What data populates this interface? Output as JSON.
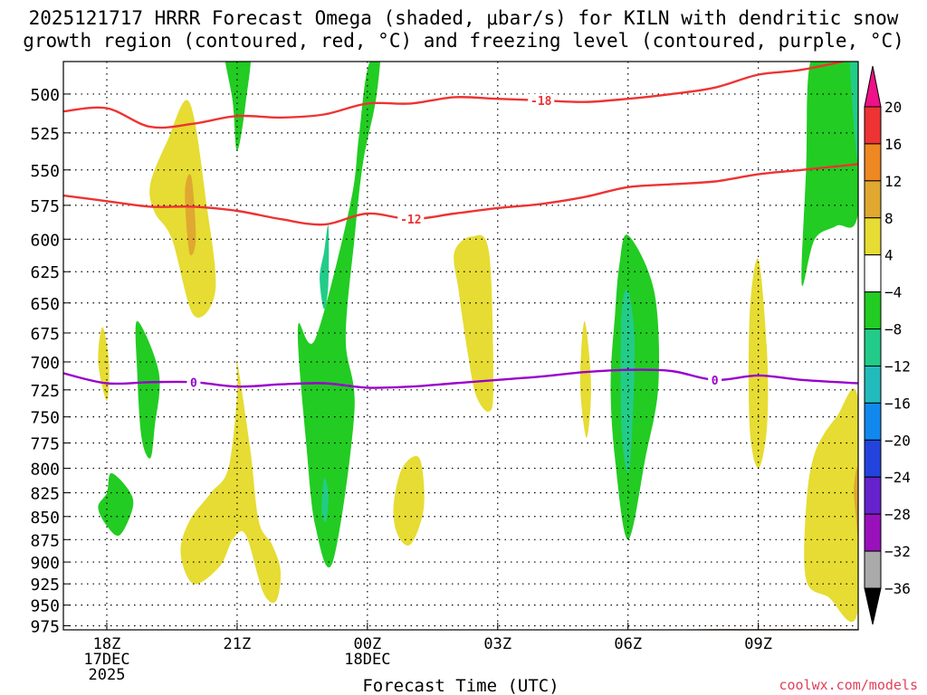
{
  "title_line1": "2025121717 HRRR Forecast Omega (shaded, μbar/s) for KILN with dendritic snow",
  "title_line2": "growth region (contoured, red, °C) and freezing level (contoured, purple, °C)",
  "credit": "coolwx.com/models",
  "chart_data": {
    "type": "time-pressure cross section (filled contours + contour lines)",
    "xlabel": "Forecast Time (UTC)",
    "x_range_hours": [
      -1,
      17.3
    ],
    "x_ticks": [
      {
        "hour": 0,
        "lines": [
          "18Z",
          "17DEC",
          "2025"
        ]
      },
      {
        "hour": 3,
        "lines": [
          "21Z"
        ]
      },
      {
        "hour": 6,
        "lines": [
          "00Z",
          "18DEC"
        ]
      },
      {
        "hour": 9,
        "lines": [
          "03Z"
        ]
      },
      {
        "hour": 12,
        "lines": [
          "06Z"
        ]
      },
      {
        "hour": 15,
        "lines": [
          "09Z"
        ]
      }
    ],
    "y_range_mb": [
      480,
      980
    ],
    "y_ticks": [
      500,
      525,
      550,
      575,
      600,
      625,
      650,
      675,
      700,
      725,
      750,
      775,
      800,
      825,
      850,
      875,
      900,
      925,
      950,
      975
    ],
    "colorbar": {
      "labels": [
        "20",
        "16",
        "12",
        "8",
        "4",
        "−4",
        "−8",
        "−12",
        "−16",
        "−20",
        "−24",
        "−28",
        "−32",
        "−36"
      ],
      "top_color": "#ee1188",
      "bottom_color": "#000000",
      "bins": [
        {
          "from": 16,
          "to": 20,
          "color": "#ee3333"
        },
        {
          "from": 12,
          "to": 16,
          "color": "#ee8822"
        },
        {
          "from": 8,
          "to": 12,
          "color": "#e0a830"
        },
        {
          "from": 4,
          "to": 8,
          "color": "#e6dc33"
        },
        {
          "from": -4,
          "to": 4,
          "color": "#ffffff"
        },
        {
          "from": -8,
          "to": -4,
          "color": "#22cc22"
        },
        {
          "from": -12,
          "to": -8,
          "color": "#22cc88"
        },
        {
          "from": -16,
          "to": -12,
          "color": "#22bbbb"
        },
        {
          "from": -20,
          "to": -16,
          "color": "#1188ee"
        },
        {
          "from": -24,
          "to": -20,
          "color": "#2244dd"
        },
        {
          "from": -28,
          "to": -24,
          "color": "#6622cc"
        },
        {
          "from": -32,
          "to": -28,
          "color": "#9911bb"
        },
        {
          "from": -36,
          "to": -32,
          "color": "#aaaaaa"
        }
      ]
    },
    "contour_lines": [
      {
        "label": "-18",
        "color": "#ee3333",
        "label_hour": 10.0,
        "points": [
          [
            -1,
            511
          ],
          [
            0,
            509
          ],
          [
            1,
            521
          ],
          [
            2,
            519
          ],
          [
            3,
            514
          ],
          [
            4,
            515
          ],
          [
            5,
            513
          ],
          [
            6,
            506
          ],
          [
            7,
            506
          ],
          [
            8,
            502
          ],
          [
            9,
            503
          ],
          [
            10,
            504
          ],
          [
            11,
            505
          ],
          [
            12,
            503
          ],
          [
            13,
            500
          ],
          [
            14,
            496
          ],
          [
            15,
            488
          ],
          [
            16,
            485
          ],
          [
            17.3,
            478
          ]
        ]
      },
      {
        "label": "-12",
        "color": "#ee3333",
        "label_hour": 7.0,
        "points": [
          [
            -1,
            568
          ],
          [
            0,
            572
          ],
          [
            1,
            576
          ],
          [
            2,
            576
          ],
          [
            3,
            579
          ],
          [
            4,
            585
          ],
          [
            5,
            589
          ],
          [
            6,
            581
          ],
          [
            7,
            585
          ],
          [
            8,
            581
          ],
          [
            9,
            577
          ],
          [
            10,
            574
          ],
          [
            11,
            569
          ],
          [
            12,
            562
          ],
          [
            13,
            560
          ],
          [
            14,
            558
          ],
          [
            15,
            553
          ],
          [
            16,
            550
          ],
          [
            17.3,
            546
          ]
        ]
      },
      {
        "label": "0",
        "color": "#9900cc",
        "label_hour_list": [
          2.0,
          14.0
        ],
        "points": [
          [
            -1,
            710
          ],
          [
            0,
            719
          ],
          [
            1,
            718
          ],
          [
            2,
            718
          ],
          [
            3,
            722
          ],
          [
            4,
            720
          ],
          [
            5,
            719
          ],
          [
            6,
            723
          ],
          [
            7,
            722
          ],
          [
            8,
            719
          ],
          [
            9,
            716
          ],
          [
            10,
            713
          ],
          [
            11,
            709
          ],
          [
            12,
            707
          ],
          [
            13,
            708
          ],
          [
            14,
            716
          ],
          [
            15,
            712
          ],
          [
            16,
            716
          ],
          [
            17.3,
            719
          ]
        ]
      }
    ],
    "omega_regions": [
      {
        "color": "#22cc22",
        "points": [
          [
            2.7,
            468
          ],
          [
            3.3,
            468
          ],
          [
            3.2,
            505
          ],
          [
            3.0,
            537
          ],
          [
            2.9,
            505
          ]
        ]
      },
      {
        "color": "#22cc22",
        "points": [
          [
            4.8,
            680
          ],
          [
            5.6,
            575
          ],
          [
            5.8,
            528
          ],
          [
            6.0,
            485
          ],
          [
            6.3,
            470
          ],
          [
            6.2,
            503
          ],
          [
            5.9,
            545
          ],
          [
            5.7,
            600
          ],
          [
            5.5,
            680
          ],
          [
            5.7,
            745
          ],
          [
            5.2,
            900
          ],
          [
            4.8,
            860
          ],
          [
            4.6,
            780
          ],
          [
            4.4,
            670
          ]
        ]
      },
      {
        "color": "#22cc88",
        "points": [
          [
            5.0,
            610
          ],
          [
            5.1,
            590
          ],
          [
            5.1,
            635
          ],
          [
            5.0,
            655
          ],
          [
            4.9,
            630
          ]
        ]
      },
      {
        "color": "#22cc88",
        "points": [
          [
            5.0,
            810
          ],
          [
            5.1,
            825
          ],
          [
            5.05,
            855
          ],
          [
            4.95,
            845
          ]
        ]
      },
      {
        "color": "#22cc22",
        "points": [
          [
            0.7,
            710
          ],
          [
            0.7,
            665
          ],
          [
            1.2,
            710
          ],
          [
            1.1,
            760
          ],
          [
            1.0,
            790
          ],
          [
            0.8,
            770
          ]
        ]
      },
      {
        "color": "#22cc22",
        "points": [
          [
            0.0,
            825
          ],
          [
            0.1,
            805
          ],
          [
            0.5,
            822
          ],
          [
            0.6,
            840
          ],
          [
            0.3,
            870
          ],
          [
            0.0,
            860
          ],
          [
            -0.2,
            840
          ]
        ]
      },
      {
        "color": "#22cc22",
        "points": [
          [
            11.7,
            660
          ],
          [
            11.6,
            720
          ],
          [
            11.7,
            790
          ],
          [
            12.0,
            875
          ],
          [
            12.4,
            790
          ],
          [
            12.7,
            720
          ],
          [
            12.6,
            640
          ],
          [
            12.0,
            597
          ],
          [
            11.8,
            620
          ]
        ]
      },
      {
        "color": "#22cc88",
        "points": [
          [
            11.85,
            660
          ],
          [
            12.0,
            640
          ],
          [
            12.15,
            680
          ],
          [
            12.1,
            760
          ],
          [
            12.0,
            805
          ],
          [
            11.85,
            760
          ]
        ]
      },
      {
        "color": "#22cc22",
        "points": [
          [
            16.0,
            635
          ],
          [
            16.3,
            600
          ],
          [
            16.8,
            590
          ],
          [
            17.3,
            580
          ],
          [
            17.3,
            480
          ],
          [
            16.8,
            470
          ],
          [
            16.2,
            480
          ],
          [
            16.1,
            550
          ]
        ]
      },
      {
        "color": "#22cc88",
        "points": [
          [
            17.1,
            470
          ],
          [
            17.3,
            470
          ],
          [
            17.3,
            540
          ],
          [
            17.2,
            520
          ]
        ]
      },
      {
        "color": "#e6dc33",
        "points": [
          [
            1.0,
            560
          ],
          [
            1.4,
            530
          ],
          [
            1.9,
            505
          ],
          [
            2.3,
            575
          ],
          [
            2.5,
            640
          ],
          [
            2.0,
            660
          ],
          [
            1.5,
            600
          ],
          [
            1.1,
            580
          ]
        ]
      },
      {
        "color": "#e0a830",
        "points": [
          [
            1.8,
            565
          ],
          [
            1.95,
            555
          ],
          [
            2.05,
            600
          ],
          [
            1.9,
            610
          ]
        ]
      },
      {
        "color": "#e6dc33",
        "points": [
          [
            -0.2,
            700
          ],
          [
            -0.1,
            670
          ],
          [
            0.05,
            700
          ],
          [
            0.0,
            735
          ]
        ]
      },
      {
        "color": "#e6dc33",
        "points": [
          [
            3.0,
            730
          ],
          [
            3.0,
            700
          ],
          [
            3.3,
            780
          ],
          [
            3.5,
            855
          ],
          [
            3.8,
            880
          ],
          [
            4.0,
            910
          ],
          [
            3.9,
            945
          ],
          [
            3.6,
            935
          ],
          [
            3.2,
            870
          ],
          [
            2.9,
            875
          ],
          [
            2.6,
            905
          ],
          [
            2.0,
            925
          ],
          [
            1.7,
            890
          ],
          [
            1.9,
            855
          ],
          [
            2.4,
            825
          ],
          [
            2.8,
            800
          ]
        ]
      },
      {
        "color": "#e6dc33",
        "points": [
          [
            6.6,
            840
          ],
          [
            6.8,
            800
          ],
          [
            7.2,
            790
          ],
          [
            7.3,
            840
          ],
          [
            7.0,
            880
          ],
          [
            6.7,
            870
          ]
        ]
      },
      {
        "color": "#e6dc33",
        "points": [
          [
            8.0,
            610
          ],
          [
            8.4,
            598
          ],
          [
            8.8,
            610
          ],
          [
            8.9,
            720
          ],
          [
            8.8,
            745
          ],
          [
            8.5,
            730
          ],
          [
            8.3,
            690
          ],
          [
            8.1,
            640
          ]
        ]
      },
      {
        "color": "#e6dc33",
        "points": [
          [
            10.9,
            720
          ],
          [
            11.0,
            665
          ],
          [
            11.15,
            720
          ],
          [
            11.05,
            770
          ]
        ]
      },
      {
        "color": "#e6dc33",
        "points": [
          [
            14.8,
            660
          ],
          [
            15.0,
            615
          ],
          [
            15.2,
            690
          ],
          [
            15.2,
            760
          ],
          [
            15.0,
            800
          ],
          [
            14.8,
            760
          ]
        ]
      },
      {
        "color": "#e6dc33",
        "points": [
          [
            16.1,
            840
          ],
          [
            16.3,
            785
          ],
          [
            16.8,
            750
          ],
          [
            17.3,
            735
          ],
          [
            17.3,
            955
          ],
          [
            16.6,
            940
          ],
          [
            16.1,
            920
          ]
        ]
      },
      {
        "color": "#e0a830",
        "points": [
          [
            17.2,
            820
          ],
          [
            17.3,
            800
          ],
          [
            17.3,
            870
          ],
          [
            17.25,
            850
          ]
        ]
      }
    ],
    "terrain": {
      "color": "#9e5a30",
      "points": [
        [
          -1,
          981
        ],
        [
          2,
          981
        ],
        [
          4,
          982
        ],
        [
          8,
          982
        ],
        [
          11,
          981
        ],
        [
          14,
          979
        ],
        [
          17.3,
          979
        ]
      ]
    }
  }
}
